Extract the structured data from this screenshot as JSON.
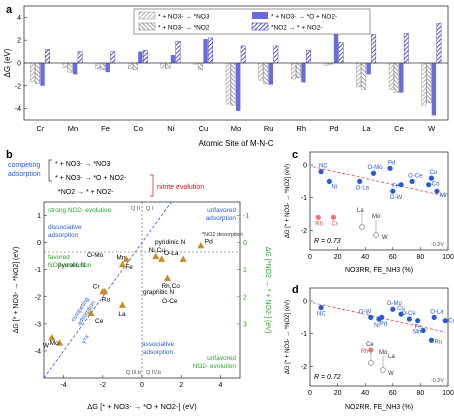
{
  "panel_labels": {
    "a": "a",
    "b": "b",
    "c": "c",
    "d": "d"
  },
  "panel_a": {
    "legend": [
      "* + NO3- → *NO3",
      "* + NO3- → *NO2",
      "* + NO3- → *O + NO2-",
      "*NO2 → * + NO2-"
    ]
  },
  "panel_b": {
    "bracket_label": [
      "competing",
      "adsorption"
    ],
    "equations": [
      "* + NO3- → *NO3",
      "* + NO3- → *O + NO2-",
      "*NO2 → * + NO2-"
    ],
    "nitrite_label": "nitrite evolution",
    "quadrants": [
      "Q II",
      "Q I",
      "Q III.b",
      "Q IV.b"
    ],
    "texts": {
      "strong": "strong NO2- evolution",
      "dissociative": [
        "dissociative",
        "adsorption"
      ],
      "favored": [
        "favored",
        "NO2- evolution"
      ],
      "unfavored_ads": [
        "unfavored",
        "adsorption"
      ],
      "no2_desorption": "*NO2 desorption",
      "associative": [
        "associative",
        "adsorption"
      ],
      "unfavored_evo": [
        "unfavored",
        "NO2- evolution"
      ],
      "competing_adsorption": [
        "competing",
        "adsorption"
      ],
      "yx": "y=x"
    }
  },
  "panel_c": {
    "r_label": "R = 0.73",
    "corner": "-0.2V"
  },
  "panel_d": {
    "r_label": "R = 0.72",
    "corner": "-0.2V"
  },
  "chart_data": [
    {
      "panel": "a",
      "type": "bar",
      "categories": [
        "Cr",
        "Mn",
        "Fe",
        "Co",
        "Ni",
        "Cu",
        "Mo",
        "Ru",
        "Rh",
        "Pd",
        "La",
        "Ce",
        "W"
      ],
      "series": [
        {
          "name": "* + NO3- → *NO3",
          "values": [
            -1.6,
            -0.4,
            -0.5,
            -0.5,
            -0.4,
            -0.1,
            -3.6,
            -1.5,
            -1.4,
            -0.2,
            -2.1,
            -2.3,
            -3.7
          ]
        },
        {
          "name": "* + NO3- → *NO2",
          "values": [
            -1.8,
            -0.8,
            -0.6,
            -0.6,
            -0.5,
            -0.6,
            -3.7,
            -1.8,
            -1.3,
            -0.1,
            -2.3,
            -2.6,
            -3.5
          ]
        },
        {
          "name": "* + NO3- → *O + NO2-",
          "values": [
            -2.0,
            -1.0,
            -0.8,
            1.0,
            0.7,
            2.1,
            -4.2,
            -1.9,
            -1.7,
            3.0,
            -1.0,
            -2.6,
            -4.6
          ]
        },
        {
          "name": "*NO2 → * + NO2-",
          "values": [
            1.2,
            1.0,
            1.0,
            1.1,
            1.9,
            2.2,
            1.5,
            1.5,
            1.1,
            1.8,
            2.5,
            2.6,
            3.5
          ]
        }
      ],
      "colors": [
        "#c8c8c8",
        "#a8a8a8",
        "#6b6bdf",
        "#3a3ab8"
      ],
      "xlabel": "Atomic Site of M-N-C",
      "ylabel": "ΔG (eV)",
      "ylim": [
        -5,
        5
      ],
      "yticks": [
        -4,
        -2,
        0,
        2,
        4
      ]
    },
    {
      "panel": "b",
      "type": "scatter",
      "points": [
        {
          "label": "Mo",
          "x": -4.2,
          "y": -3.7
        },
        {
          "label": "W",
          "x": -4.6,
          "y": -3.5
        },
        {
          "label": "Ce",
          "x": -2.6,
          "y": -2.6
        },
        {
          "label": "La",
          "x": -1.0,
          "y": -2.3
        },
        {
          "label": "Cr",
          "x": -2.0,
          "y": -1.8
        },
        {
          "label": "Ru",
          "x": -1.9,
          "y": -1.8
        },
        {
          "label": "Mn",
          "x": -1.0,
          "y": -0.8
        },
        {
          "label": "Fe",
          "x": -0.8,
          "y": -0.6
        },
        {
          "label": "Co",
          "x": 1.0,
          "y": -0.6
        },
        {
          "label": "Rh",
          "x": 1.3,
          "y": -1.3
        },
        {
          "label": "Ni",
          "x": 0.7,
          "y": -0.5
        },
        {
          "label": "Cu",
          "x": 2.1,
          "y": -0.6
        },
        {
          "label": "Pd",
          "x": 3.0,
          "y": -0.1
        }
      ],
      "point_labels": [
        "Mo",
        "W",
        "Ce",
        "La",
        "Cr",
        "Ru",
        "Mn",
        "Fe",
        "O-Mo",
        "pyrrolic N",
        "pyridinic N",
        "O-La",
        "Ni,Cu",
        "Pd",
        "graphitic N",
        "O-Ce",
        "Rh,Co"
      ],
      "xlabel": "ΔG [* + NO3- → *O + NO2-] (eV)",
      "ylabel": "ΔG [* + NO3- → *NO2] (eV)",
      "ylabel_right": "ΔG [*NO2 → * + NO2-] (eV)",
      "xticks": [
        -4,
        -2,
        0,
        2,
        4
      ],
      "yticks": [
        -4,
        -3,
        -2,
        -1,
        0,
        1
      ],
      "yticks_right": [
        -1,
        0,
        1,
        2,
        3
      ],
      "xlim": [
        -5,
        5
      ],
      "ylim": [
        -5,
        1.5
      ]
    },
    {
      "panel": "c",
      "type": "scatter",
      "points": [
        {
          "label": "NC",
          "x": 8,
          "y": -0.2
        },
        {
          "label": "Ni",
          "x": 14,
          "y": -0.5
        },
        {
          "label": "O-La",
          "x": 36,
          "y": -0.5
        },
        {
          "label": "O-Mo",
          "x": 46,
          "y": -0.25
        },
        {
          "label": "Pd",
          "x": 58,
          "y": -0.1
        },
        {
          "label": "O-W",
          "x": 60,
          "y": -0.8
        },
        {
          "label": "Fe",
          "x": 66,
          "y": -0.6
        },
        {
          "label": "O-Ce",
          "x": 74,
          "y": -0.5
        },
        {
          "label": "Cu",
          "x": 88,
          "y": -0.4
        },
        {
          "label": "Co",
          "x": 86,
          "y": -0.6
        },
        {
          "label": "Mn",
          "x": 92,
          "y": -0.8
        },
        {
          "label": "Rh",
          "x": 6,
          "y": -1.6
        },
        {
          "label": "Cr",
          "x": 17,
          "y": -1.6
        }
      ],
      "labels": [
        "NC",
        "Ni",
        "O-La",
        "O-Mo",
        "Pd",
        "O-W",
        "Fe",
        "O-Ce",
        "Cu",
        "Co",
        "Mn",
        "Rh",
        "Cr",
        "La",
        "Mo",
        "W"
      ],
      "xlabel": "NO3RR, FE_NH3 (%)",
      "ylabel": "ΔG [* + NO3- → *NO2] (eV)",
      "xticks": [
        0,
        20,
        40,
        60,
        80,
        100
      ],
      "yticks": [
        -2,
        -1,
        0
      ],
      "xlim": [
        0,
        100
      ],
      "ylim": [
        -2.6,
        0.4
      ]
    },
    {
      "panel": "d",
      "type": "scatter",
      "points": [
        {
          "label": "NC",
          "x": 8,
          "y": -0.2
        },
        {
          "label": "Ni",
          "x": 50,
          "y": -0.55
        },
        {
          "label": "O-La",
          "x": 90,
          "y": -0.5
        },
        {
          "label": "O-Mo",
          "x": 60,
          "y": -0.25
        },
        {
          "label": "Pd",
          "x": 52,
          "y": -0.5
        },
        {
          "label": "O-W",
          "x": 44,
          "y": -0.5
        },
        {
          "label": "Fe",
          "x": 78,
          "y": -0.6
        },
        {
          "label": "O-Ce",
          "x": 72,
          "y": -0.55
        },
        {
          "label": "Cu",
          "x": 66,
          "y": -0.4
        },
        {
          "label": "Co",
          "x": 98,
          "y": -0.6
        },
        {
          "label": "Ru",
          "x": 88,
          "y": -1.2
        },
        {
          "label": "Mn",
          "x": 82,
          "y": -0.9
        },
        {
          "label": "Rh",
          "x": 44,
          "y": -1.5
        }
      ],
      "labels": [
        "NC",
        "Ni",
        "O-La",
        "O-Mo",
        "Pd",
        "O-W",
        "Fe",
        "O-Ce",
        "Cu",
        "Co",
        "Ru",
        "Mn",
        "Rh",
        "Ce",
        "Mo",
        "La",
        "W"
      ],
      "xlabel": "NO2RR, FE_NH3 (%)",
      "ylabel": "ΔG [* + NO3- → *NO2] (eV)",
      "xticks": [
        0,
        20,
        40,
        60,
        80,
        100
      ],
      "yticks": [
        -2,
        -1,
        0
      ],
      "xlim": [
        0,
        100
      ],
      "ylim": [
        -2.6,
        0.4
      ]
    }
  ]
}
